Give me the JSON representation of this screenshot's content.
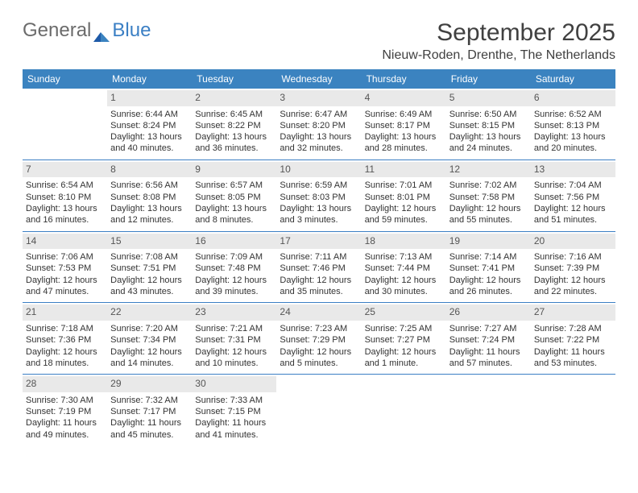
{
  "logo": {
    "part1": "General",
    "part2": "Blue"
  },
  "title": "September 2025",
  "location": "Nieuw-Roden, Drenthe, The Netherlands",
  "colors": {
    "header_bg": "#3b83c0",
    "divider": "#3b7fc4",
    "daynum_bg": "#e9e9e9",
    "text": "#333333"
  },
  "day_labels": [
    "Sunday",
    "Monday",
    "Tuesday",
    "Wednesday",
    "Thursday",
    "Friday",
    "Saturday"
  ],
  "weeks": [
    [
      {
        "n": "",
        "sun": "",
        "set": "",
        "d1": "",
        "d2": ""
      },
      {
        "n": "1",
        "sun": "Sunrise: 6:44 AM",
        "set": "Sunset: 8:24 PM",
        "d1": "Daylight: 13 hours",
        "d2": "and 40 minutes."
      },
      {
        "n": "2",
        "sun": "Sunrise: 6:45 AM",
        "set": "Sunset: 8:22 PM",
        "d1": "Daylight: 13 hours",
        "d2": "and 36 minutes."
      },
      {
        "n": "3",
        "sun": "Sunrise: 6:47 AM",
        "set": "Sunset: 8:20 PM",
        "d1": "Daylight: 13 hours",
        "d2": "and 32 minutes."
      },
      {
        "n": "4",
        "sun": "Sunrise: 6:49 AM",
        "set": "Sunset: 8:17 PM",
        "d1": "Daylight: 13 hours",
        "d2": "and 28 minutes."
      },
      {
        "n": "5",
        "sun": "Sunrise: 6:50 AM",
        "set": "Sunset: 8:15 PM",
        "d1": "Daylight: 13 hours",
        "d2": "and 24 minutes."
      },
      {
        "n": "6",
        "sun": "Sunrise: 6:52 AM",
        "set": "Sunset: 8:13 PM",
        "d1": "Daylight: 13 hours",
        "d2": "and 20 minutes."
      }
    ],
    [
      {
        "n": "7",
        "sun": "Sunrise: 6:54 AM",
        "set": "Sunset: 8:10 PM",
        "d1": "Daylight: 13 hours",
        "d2": "and 16 minutes."
      },
      {
        "n": "8",
        "sun": "Sunrise: 6:56 AM",
        "set": "Sunset: 8:08 PM",
        "d1": "Daylight: 13 hours",
        "d2": "and 12 minutes."
      },
      {
        "n": "9",
        "sun": "Sunrise: 6:57 AM",
        "set": "Sunset: 8:05 PM",
        "d1": "Daylight: 13 hours",
        "d2": "and 8 minutes."
      },
      {
        "n": "10",
        "sun": "Sunrise: 6:59 AM",
        "set": "Sunset: 8:03 PM",
        "d1": "Daylight: 13 hours",
        "d2": "and 3 minutes."
      },
      {
        "n": "11",
        "sun": "Sunrise: 7:01 AM",
        "set": "Sunset: 8:01 PM",
        "d1": "Daylight: 12 hours",
        "d2": "and 59 minutes."
      },
      {
        "n": "12",
        "sun": "Sunrise: 7:02 AM",
        "set": "Sunset: 7:58 PM",
        "d1": "Daylight: 12 hours",
        "d2": "and 55 minutes."
      },
      {
        "n": "13",
        "sun": "Sunrise: 7:04 AM",
        "set": "Sunset: 7:56 PM",
        "d1": "Daylight: 12 hours",
        "d2": "and 51 minutes."
      }
    ],
    [
      {
        "n": "14",
        "sun": "Sunrise: 7:06 AM",
        "set": "Sunset: 7:53 PM",
        "d1": "Daylight: 12 hours",
        "d2": "and 47 minutes."
      },
      {
        "n": "15",
        "sun": "Sunrise: 7:08 AM",
        "set": "Sunset: 7:51 PM",
        "d1": "Daylight: 12 hours",
        "d2": "and 43 minutes."
      },
      {
        "n": "16",
        "sun": "Sunrise: 7:09 AM",
        "set": "Sunset: 7:48 PM",
        "d1": "Daylight: 12 hours",
        "d2": "and 39 minutes."
      },
      {
        "n": "17",
        "sun": "Sunrise: 7:11 AM",
        "set": "Sunset: 7:46 PM",
        "d1": "Daylight: 12 hours",
        "d2": "and 35 minutes."
      },
      {
        "n": "18",
        "sun": "Sunrise: 7:13 AM",
        "set": "Sunset: 7:44 PM",
        "d1": "Daylight: 12 hours",
        "d2": "and 30 minutes."
      },
      {
        "n": "19",
        "sun": "Sunrise: 7:14 AM",
        "set": "Sunset: 7:41 PM",
        "d1": "Daylight: 12 hours",
        "d2": "and 26 minutes."
      },
      {
        "n": "20",
        "sun": "Sunrise: 7:16 AM",
        "set": "Sunset: 7:39 PM",
        "d1": "Daylight: 12 hours",
        "d2": "and 22 minutes."
      }
    ],
    [
      {
        "n": "21",
        "sun": "Sunrise: 7:18 AM",
        "set": "Sunset: 7:36 PM",
        "d1": "Daylight: 12 hours",
        "d2": "and 18 minutes."
      },
      {
        "n": "22",
        "sun": "Sunrise: 7:20 AM",
        "set": "Sunset: 7:34 PM",
        "d1": "Daylight: 12 hours",
        "d2": "and 14 minutes."
      },
      {
        "n": "23",
        "sun": "Sunrise: 7:21 AM",
        "set": "Sunset: 7:31 PM",
        "d1": "Daylight: 12 hours",
        "d2": "and 10 minutes."
      },
      {
        "n": "24",
        "sun": "Sunrise: 7:23 AM",
        "set": "Sunset: 7:29 PM",
        "d1": "Daylight: 12 hours",
        "d2": "and 5 minutes."
      },
      {
        "n": "25",
        "sun": "Sunrise: 7:25 AM",
        "set": "Sunset: 7:27 PM",
        "d1": "Daylight: 12 hours",
        "d2": "and 1 minute."
      },
      {
        "n": "26",
        "sun": "Sunrise: 7:27 AM",
        "set": "Sunset: 7:24 PM",
        "d1": "Daylight: 11 hours",
        "d2": "and 57 minutes."
      },
      {
        "n": "27",
        "sun": "Sunrise: 7:28 AM",
        "set": "Sunset: 7:22 PM",
        "d1": "Daylight: 11 hours",
        "d2": "and 53 minutes."
      }
    ],
    [
      {
        "n": "28",
        "sun": "Sunrise: 7:30 AM",
        "set": "Sunset: 7:19 PM",
        "d1": "Daylight: 11 hours",
        "d2": "and 49 minutes."
      },
      {
        "n": "29",
        "sun": "Sunrise: 7:32 AM",
        "set": "Sunset: 7:17 PM",
        "d1": "Daylight: 11 hours",
        "d2": "and 45 minutes."
      },
      {
        "n": "30",
        "sun": "Sunrise: 7:33 AM",
        "set": "Sunset: 7:15 PM",
        "d1": "Daylight: 11 hours",
        "d2": "and 41 minutes."
      },
      {
        "n": "",
        "sun": "",
        "set": "",
        "d1": "",
        "d2": ""
      },
      {
        "n": "",
        "sun": "",
        "set": "",
        "d1": "",
        "d2": ""
      },
      {
        "n": "",
        "sun": "",
        "set": "",
        "d1": "",
        "d2": ""
      },
      {
        "n": "",
        "sun": "",
        "set": "",
        "d1": "",
        "d2": ""
      }
    ]
  ]
}
